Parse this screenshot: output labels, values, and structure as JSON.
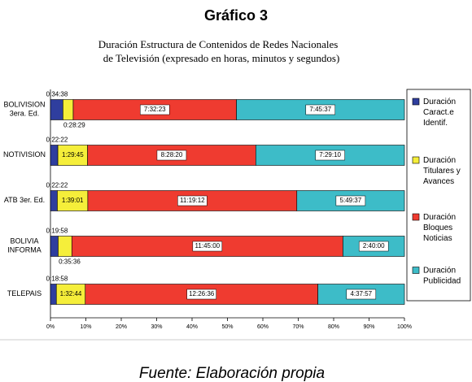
{
  "chart_data": {
    "type": "stacked_bar_h_percent",
    "title": "Gráfico 3",
    "subtitle": [
      "Duración Estructura de Contenidos de Redes Nacionales",
      "de Televisión (expresado en horas, minutos y segundos)"
    ],
    "source": "Fuente: Elaboración propia",
    "categories": [
      "BOLIVISION\n3era. Ed.",
      "NOTIVISION",
      "ATB 3er. Ed.",
      "BOLIVIA\nINFORMA",
      "TELEPAIS"
    ],
    "series": [
      {
        "name": "Duración\nCaract.e\nIdentif.",
        "color": "#2f3e9e",
        "values": [
          3.53,
          2.09,
          1.94,
          2.17,
          1.67
        ],
        "value_labels": [
          "0:34:38",
          "0:22:22",
          "0:22:22",
          "0:19:58",
          "0:18:58"
        ]
      },
      {
        "name": "Duración\nTitulares y\nAvances",
        "color": "#f5ee3a",
        "values": [
          2.9,
          8.39,
          8.61,
          3.87,
          8.16
        ],
        "value_labels": [
          "0:28:29",
          "1:29:45",
          "1:39:01",
          "0:35:36",
          "1:32:44"
        ]
      },
      {
        "name": "Duración\nBloques\nNoticias",
        "color": "#ef3b30",
        "values": [
          46.11,
          47.52,
          59.05,
          76.58,
          65.71
        ],
        "value_labels": [
          "7:32:23",
          "8:28:20",
          "11:19:12",
          "11:45:00",
          "12:26:36"
        ]
      },
      {
        "name": "Duración\nPublicidad",
        "color": "#3dbcc8",
        "values": [
          47.46,
          42.0,
          30.4,
          17.38,
          24.46
        ],
        "value_labels": [
          "7:45:37",
          "7:29:10",
          "5:49:37",
          "2:40:00",
          "4:37:57"
        ]
      }
    ],
    "xlim": [
      0,
      100
    ],
    "xticks": [
      {
        "value": 0,
        "label": "0%"
      },
      {
        "value": 10,
        "label": "10%"
      },
      {
        "value": 20,
        "label": "20%"
      },
      {
        "value": 30,
        "label": "30%"
      },
      {
        "value": 40,
        "label": "40%"
      },
      {
        "value": 50,
        "label": "50%"
      },
      {
        "value": 60,
        "label": "60%"
      },
      {
        "value": 70,
        "label": "70%"
      },
      {
        "value": 80,
        "label": "80%"
      },
      {
        "value": 90,
        "label": "90%"
      },
      {
        "value": 100,
        "label": "100%"
      }
    ]
  }
}
